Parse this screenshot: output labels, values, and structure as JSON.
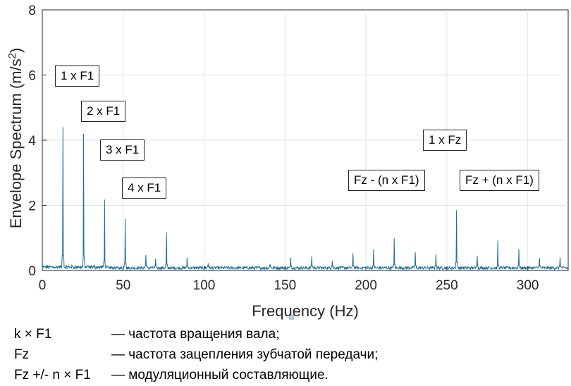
{
  "chart_data": {
    "type": "line",
    "ylabel_main": "Envelope Spectrum (m/s",
    "ylabel_sup": "2",
    "ylabel_end": ")",
    "xlabel": "Frequency (Hz)",
    "xlim": [
      0,
      325
    ],
    "ylim": [
      0,
      8
    ],
    "xticks": [
      0,
      50,
      100,
      150,
      200,
      250,
      300
    ],
    "yticks": [
      0,
      2,
      4,
      6,
      8
    ],
    "grid": true,
    "line_color": "#1f6e9c",
    "noise_floor": 0.1,
    "peaks": [
      {
        "x": 12.8,
        "y": 4.4
      },
      {
        "x": 25.6,
        "y": 4.2
      },
      {
        "x": 38.4,
        "y": 2.18
      },
      {
        "x": 51.2,
        "y": 1.58
      },
      {
        "x": 64.0,
        "y": 0.48
      },
      {
        "x": 70.0,
        "y": 0.36
      },
      {
        "x": 76.8,
        "y": 1.17
      },
      {
        "x": 89.6,
        "y": 0.4
      },
      {
        "x": 102.4,
        "y": 0.22
      },
      {
        "x": 140.8,
        "y": 0.2
      },
      {
        "x": 153.6,
        "y": 0.4
      },
      {
        "x": 166.4,
        "y": 0.43
      },
      {
        "x": 179.2,
        "y": 0.3
      },
      {
        "x": 192.0,
        "y": 0.53
      },
      {
        "x": 204.8,
        "y": 0.65
      },
      {
        "x": 217.6,
        "y": 1.0
      },
      {
        "x": 230.4,
        "y": 0.56
      },
      {
        "x": 243.2,
        "y": 0.5
      },
      {
        "x": 256.0,
        "y": 1.85
      },
      {
        "x": 268.8,
        "y": 0.45
      },
      {
        "x": 281.6,
        "y": 0.92
      },
      {
        "x": 294.4,
        "y": 0.66
      },
      {
        "x": 307.2,
        "y": 0.38
      },
      {
        "x": 320.0,
        "y": 0.4
      }
    ],
    "annotations": [
      {
        "text": "1 x F1"
      },
      {
        "text": "2 x F1"
      },
      {
        "text": "3 x F1"
      },
      {
        "text": "4 x F1"
      },
      {
        "text": "1 x Fz"
      },
      {
        "text": "Fz - (n x F1)"
      },
      {
        "text": "Fz + (n x F1)"
      }
    ]
  },
  "legend": [
    {
      "symbol": "k × F1",
      "desc": "— частота вращения вала;"
    },
    {
      "symbol": "Fz",
      "desc": "— частота зацепления зубчатой передачи;"
    },
    {
      "symbol": "Fz +/- n × F1",
      "desc": "— модуляционный составляющие."
    }
  ]
}
